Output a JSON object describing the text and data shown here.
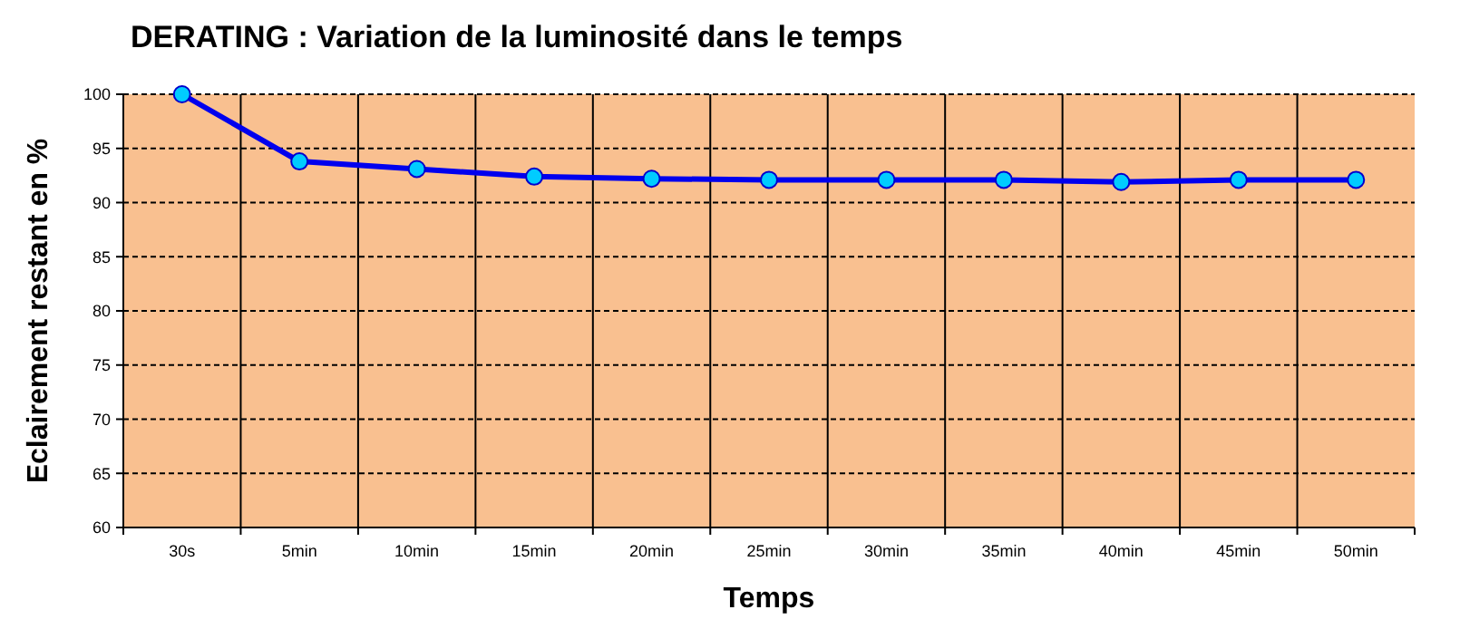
{
  "chart_data": {
    "type": "line",
    "title": "DERATING : Variation de la luminosité dans le temps",
    "xlabel": "Temps",
    "ylabel": "Eclairement restant en %",
    "categories": [
      "30s",
      "5min",
      "10min",
      "15min",
      "20min",
      "25min",
      "30min",
      "35min",
      "40min",
      "45min",
      "50min"
    ],
    "series": [
      {
        "color": "#0000ee",
        "values": [
          100,
          93.8,
          93.1,
          92.4,
          92.2,
          92.1,
          92.1,
          92.1,
          91.9,
          92.1,
          92.1
        ]
      }
    ],
    "ylim": [
      60,
      100
    ],
    "yticks": [
      60,
      65,
      70,
      75,
      80,
      85,
      90,
      95,
      100
    ],
    "grid": true,
    "marker": "circle",
    "line_style": "solid"
  }
}
